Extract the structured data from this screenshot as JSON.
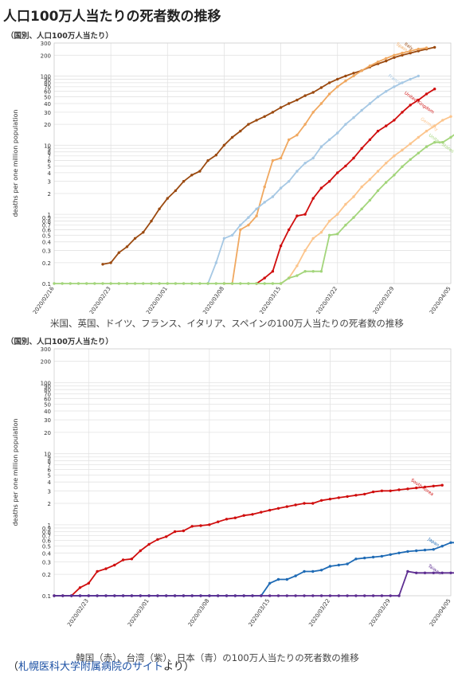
{
  "page_title": "人口100万人当たりの死者数の推移",
  "source": {
    "prefix": "（",
    "link_text": "札幌医科大学附属病院のサイト",
    "suffix": "より）"
  },
  "chart_data": [
    {
      "type": "line",
      "note": "（国別、人口100万人当たり）",
      "title": "",
      "ylabel": "deaths per one million population",
      "xlabel": "",
      "y_scale": "log",
      "ylim": [
        0.1,
        300
      ],
      "y_ticks": [
        "0.1",
        "0.2",
        "0.3",
        "0.4",
        "0.5",
        "0.6",
        "0.7",
        "0.8",
        "0.9",
        "1",
        "2",
        "3",
        "4",
        "5",
        "6",
        "7",
        "8",
        "9",
        "10",
        "20",
        "30",
        "40",
        "50",
        "60",
        "70",
        "80",
        "90",
        "100",
        "200",
        "300"
      ],
      "x_tick_labels": [
        "2020/02/16",
        "2020/02/23",
        "2020/03/01",
        "2020/03/08",
        "2020/03/15",
        "2020/03/22",
        "2020/03/29",
        "2020/04/05"
      ],
      "grid": true,
      "legend": "labels on lines",
      "caption": "米国、英国、ドイツ、フランス、イタリア、スペインの100万人当たりの死者数の推移",
      "series": [
        {
          "name": "Italy",
          "color": "#9b4a10",
          "start": "2020/02/22",
          "values": [
            0.19,
            0.2,
            0.28,
            0.34,
            0.45,
            0.55,
            0.8,
            1.2,
            1.7,
            2.2,
            3.0,
            3.7,
            4.2,
            6.0,
            7.2,
            10,
            13,
            16,
            20,
            23,
            26,
            30,
            35,
            40,
            45,
            52,
            58,
            68,
            80,
            90,
            100,
            110,
            120,
            135,
            150,
            165,
            185,
            200,
            215,
            230,
            245,
            260
          ]
        },
        {
          "name": "Spain",
          "color": "#f0a860",
          "start": "2020/03/08",
          "values": [
            0.1,
            0.1,
            0.6,
            0.7,
            0.95,
            2.5,
            6.0,
            6.5,
            12,
            14,
            20,
            30,
            40,
            55,
            70,
            85,
            100,
            120,
            140,
            160,
            180,
            200,
            215,
            230,
            245,
            255
          ]
        },
        {
          "name": "France",
          "color": "#a6c8e4",
          "start": "2020/03/06",
          "values": [
            0.1,
            0.2,
            0.45,
            0.5,
            0.7,
            0.9,
            1.2,
            1.5,
            1.8,
            2.4,
            3.0,
            4.2,
            5.5,
            6.5,
            9.5,
            12,
            15,
            20,
            25,
            32,
            40,
            50,
            60,
            70,
            80,
            90,
            100
          ]
        },
        {
          "name": "United Kingdom",
          "color": "#d00e0e",
          "start": "2020/03/12",
          "values": [
            0.1,
            0.12,
            0.15,
            0.35,
            0.6,
            0.95,
            1.0,
            1.7,
            2.4,
            3.0,
            4.0,
            5.0,
            6.5,
            9.0,
            12,
            16,
            19,
            23,
            30,
            38,
            45,
            55,
            65
          ]
        },
        {
          "name": "Germany",
          "color": "#fcc58d",
          "start": "2020/03/15",
          "values": [
            0.1,
            0.12,
            0.18,
            0.3,
            0.45,
            0.55,
            0.8,
            1.0,
            1.4,
            1.8,
            2.5,
            3.2,
            4.2,
            5.5,
            7.0,
            8.5,
            10.5,
            13,
            16,
            19,
            23,
            26
          ]
        },
        {
          "name": "United States",
          "color": "#a3d57b",
          "start": "2020/02/16",
          "values": [
            0.1,
            0.1,
            0.1,
            0.1,
            0.1,
            0.1,
            0.1,
            0.1,
            0.1,
            0.1,
            0.1,
            0.1,
            0.1,
            0.1,
            0.1,
            0.1,
            0.1,
            0.1,
            0.1,
            0.1,
            0.1,
            0.1,
            0.1,
            0.1,
            0.1,
            0.1,
            0.1,
            0.1,
            0.1,
            0.12,
            0.13,
            0.15,
            0.15,
            0.15,
            0.5,
            0.52,
            0.7,
            0.9,
            1.2,
            1.6,
            2.2,
            2.9,
            3.7,
            4.9,
            6.2,
            7.7,
            9.5,
            11,
            11,
            13,
            16
          ]
        }
      ]
    },
    {
      "type": "line",
      "note": "（国別、人口100万人当たり）",
      "title": "",
      "ylabel": "deaths per one million population",
      "xlabel": "",
      "y_scale": "log",
      "ylim": [
        0.1,
        300
      ],
      "y_ticks": [
        "0.1",
        "0.2",
        "0.3",
        "0.4",
        "0.5",
        "0.6",
        "0.7",
        "0.8",
        "0.9",
        "1",
        "2",
        "3",
        "4",
        "5",
        "6",
        "7",
        "8",
        "9",
        "10",
        "20",
        "30",
        "40",
        "50",
        "60",
        "70",
        "80",
        "90",
        "100",
        "200",
        "300"
      ],
      "x_tick_labels": [
        "2020/02/23",
        "2020/03/01",
        "2020/03/08",
        "2020/03/15",
        "2020/03/22",
        "2020/03/29",
        "2020/04/05"
      ],
      "grid": true,
      "legend": "labels on lines",
      "caption": "韓国（赤）、台湾（紫）、日本（青）の100万人当たりの死者数の推移",
      "series": [
        {
          "name": "South Korea",
          "color": "#d00e0e",
          "start": "2020/02/19",
          "values": [
            0.1,
            0.1,
            0.1,
            0.13,
            0.15,
            0.22,
            0.24,
            0.27,
            0.32,
            0.33,
            0.43,
            0.53,
            0.62,
            0.68,
            0.8,
            0.82,
            0.95,
            0.97,
            1.0,
            1.1,
            1.2,
            1.25,
            1.35,
            1.4,
            1.5,
            1.6,
            1.7,
            1.8,
            1.9,
            2.0,
            2.0,
            2.2,
            2.3,
            2.4,
            2.5,
            2.6,
            2.7,
            2.9,
            3.0,
            3.0,
            3.1,
            3.2,
            3.3,
            3.4,
            3.5,
            3.6
          ]
        },
        {
          "name": "Japan",
          "color": "#1f6bb5",
          "start": "2020/02/19",
          "values": [
            0.1,
            0.1,
            0.1,
            0.1,
            0.1,
            0.1,
            0.1,
            0.1,
            0.1,
            0.1,
            0.1,
            0.1,
            0.1,
            0.1,
            0.1,
            0.1,
            0.1,
            0.1,
            0.1,
            0.1,
            0.1,
            0.1,
            0.1,
            0.1,
            0.1,
            0.15,
            0.17,
            0.17,
            0.19,
            0.22,
            0.22,
            0.23,
            0.26,
            0.27,
            0.28,
            0.33,
            0.34,
            0.35,
            0.36,
            0.38,
            0.4,
            0.42,
            0.43,
            0.44,
            0.45,
            0.5,
            0.56,
            0.56
          ]
        },
        {
          "name": "Taiwan",
          "color": "#5d2d91",
          "start": "2020/02/19",
          "values": [
            0.1,
            0.1,
            0.1,
            0.1,
            0.1,
            0.1,
            0.1,
            0.1,
            0.1,
            0.1,
            0.1,
            0.1,
            0.1,
            0.1,
            0.1,
            0.1,
            0.1,
            0.1,
            0.1,
            0.1,
            0.1,
            0.1,
            0.1,
            0.1,
            0.1,
            0.1,
            0.1,
            0.1,
            0.1,
            0.1,
            0.1,
            0.1,
            0.1,
            0.1,
            0.1,
            0.1,
            0.1,
            0.1,
            0.1,
            0.1,
            0.1,
            0.22,
            0.21,
            0.21,
            0.21,
            0.21,
            0.21,
            0.21
          ]
        }
      ]
    }
  ]
}
